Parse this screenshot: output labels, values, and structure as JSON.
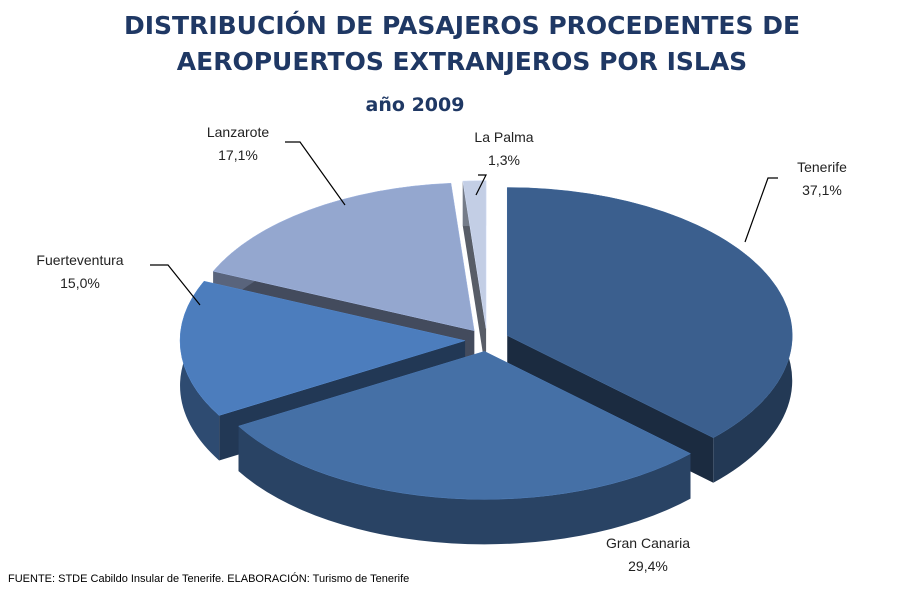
{
  "chart_data": {
    "type": "pie",
    "title": "DISTRIBUCIÓN DE PASAJEROS PROCEDENTES DE AEROPUERTOS EXTRANJEROS POR ISLAS",
    "subtitle": "año 2009",
    "categories": [
      "Tenerife",
      "Gran Canaria",
      "Fuerteventura",
      "Lanzarote",
      "La Palma"
    ],
    "values": [
      37.1,
      29.4,
      15.0,
      17.1,
      1.3
    ],
    "value_labels": [
      "37,1%",
      "29,4%",
      "15,0%",
      "17,1%",
      "1,3%"
    ],
    "colors": [
      "#3b5f8e",
      "#4570a6",
      "#4c7dbd",
      "#94a7cf",
      "#c3cee5"
    ],
    "note": "FUENTE: STDE Cabildo Insular de Tenerife. ELABORACIÓN: Turismo de Tenerife"
  }
}
